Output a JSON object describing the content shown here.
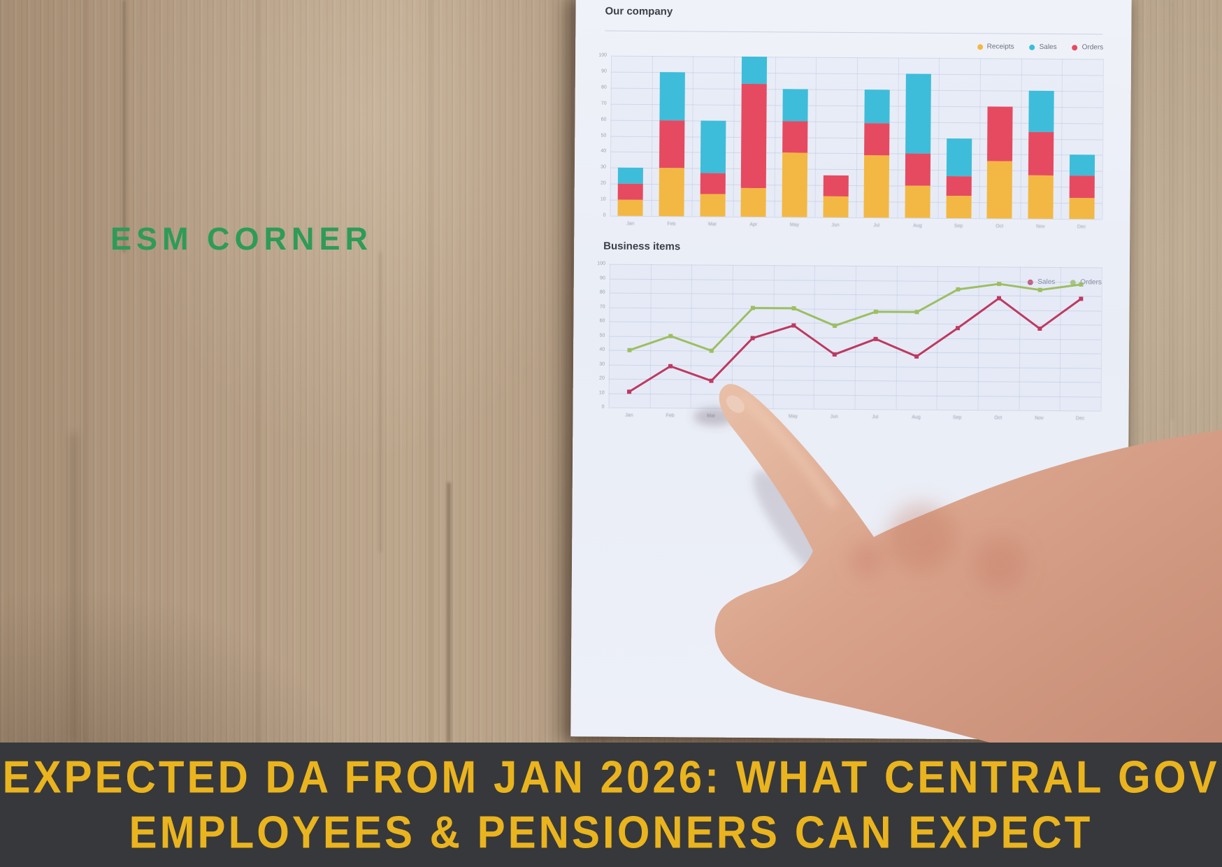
{
  "branding": {
    "logo_text": "ESM CORNER",
    "logo_color": "#2E9B58"
  },
  "banner": {
    "line1": "EXPECTED DA FROM JAN 2026: WHAT CENTRAL GOV",
    "line2": "EMPLOYEES & PENSIONERS CAN EXPECT",
    "text_color": "#EAB41E",
    "bg_color": "#36383B"
  },
  "scene": {
    "wood_base": "#AE977E",
    "skin_tone": "#D8A189",
    "paper_bg": "#EDF0F8"
  },
  "chart_data": [
    {
      "type": "bar",
      "stacked": true,
      "title": "Our company",
      "categories": [
        "Jan",
        "Feb",
        "Mar",
        "Apr",
        "May",
        "Jun",
        "Jul",
        "Aug",
        "Sep",
        "Oct",
        "Nov",
        "Dec"
      ],
      "series": [
        {
          "name": "Receipts",
          "color": "#F3B843",
          "values": [
            10,
            30,
            14,
            18,
            40,
            13,
            39,
            20,
            14,
            36,
            27,
            13
          ]
        },
        {
          "name": "Orders",
          "color": "#E64A60",
          "values": [
            10,
            30,
            13,
            65,
            20,
            13,
            20,
            20,
            12,
            34,
            27,
            14
          ]
        },
        {
          "name": "Sales",
          "color": "#3DBDD9",
          "values": [
            10,
            30,
            33,
            17,
            20,
            0,
            21,
            50,
            24,
            0,
            26,
            13
          ]
        }
      ],
      "legend": [
        {
          "label": "Receipts",
          "color": "#F3B843"
        },
        {
          "label": "Sales",
          "color": "#3DBDD9"
        },
        {
          "label": "Orders",
          "color": "#E64A60"
        }
      ],
      "xlabel": "",
      "ylabel": "",
      "ylim": [
        0,
        100
      ],
      "ytick_step": 10,
      "grid": true,
      "legend_position": "top-right"
    },
    {
      "type": "line",
      "title": "Business items",
      "categories": [
        "Jan",
        "Feb",
        "Mar",
        "Apr",
        "May",
        "Jun",
        "Jul",
        "Aug",
        "Sep",
        "Oct",
        "Nov",
        "Dec"
      ],
      "series": [
        {
          "name": "Orders",
          "color": "#9DBE62",
          "values": [
            40,
            50,
            40,
            70,
            70,
            58,
            68,
            68,
            84,
            88,
            84,
            88
          ]
        },
        {
          "name": "Sales",
          "color": "#BE3960",
          "values": [
            11,
            29,
            19,
            49,
            58,
            38,
            49,
            37,
            57,
            78,
            57,
            78
          ]
        }
      ],
      "legend": [
        {
          "label": "Sales",
          "color": "#BE3960"
        },
        {
          "label": "Orders",
          "color": "#9DBE62"
        }
      ],
      "xlabel": "",
      "ylabel": "",
      "ylim": [
        0,
        100
      ],
      "ytick_step": 10,
      "grid": true,
      "legend_position": "top-right"
    }
  ]
}
